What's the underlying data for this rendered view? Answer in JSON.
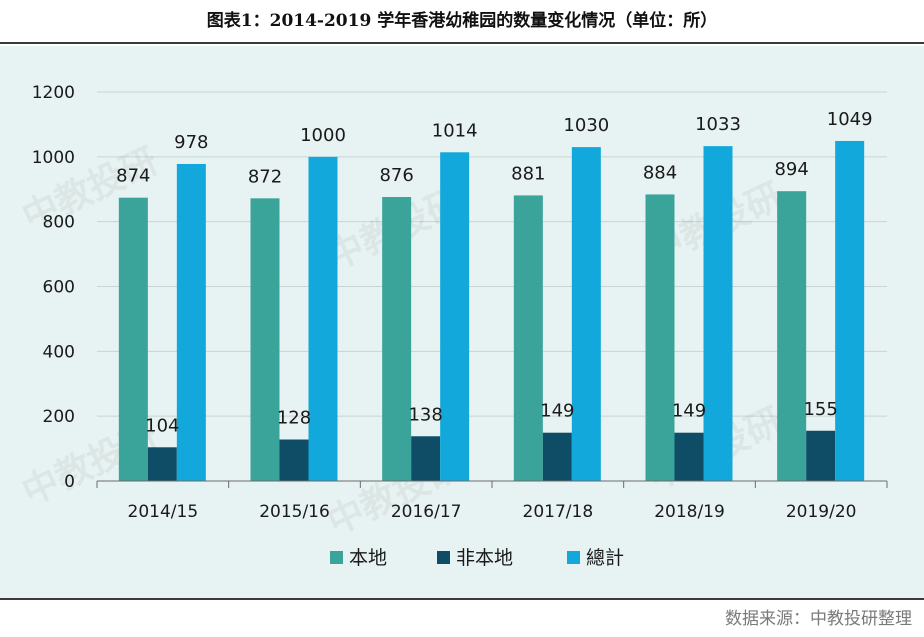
{
  "title": "图表1：2014-2019 学年香港幼稚园的数量变化情况（单位：所）",
  "source": "数据来源：中教投研整理",
  "chart_data": {
    "type": "bar",
    "categories": [
      "2014/15",
      "2015/16",
      "2016/17",
      "2017/18",
      "2018/19",
      "2019/20"
    ],
    "series": [
      {
        "name": "本地",
        "values": [
          874,
          872,
          876,
          881,
          884,
          894
        ],
        "color": "#3aa39a"
      },
      {
        "name": "非本地",
        "values": [
          104,
          128,
          138,
          149,
          149,
          155
        ],
        "color": "#0f4c66"
      },
      {
        "name": "總計",
        "values": [
          978,
          1000,
          1014,
          1030,
          1033,
          1049
        ],
        "color": "#12a8dc"
      }
    ],
    "ylim": [
      0,
      1200
    ],
    "yticks": [
      0,
      200,
      400,
      600,
      800,
      1000,
      1200
    ],
    "grid": true,
    "legend": "bottom",
    "data_labels": true
  },
  "panel_color": "#e7f3f2",
  "watermark": "中教投研"
}
